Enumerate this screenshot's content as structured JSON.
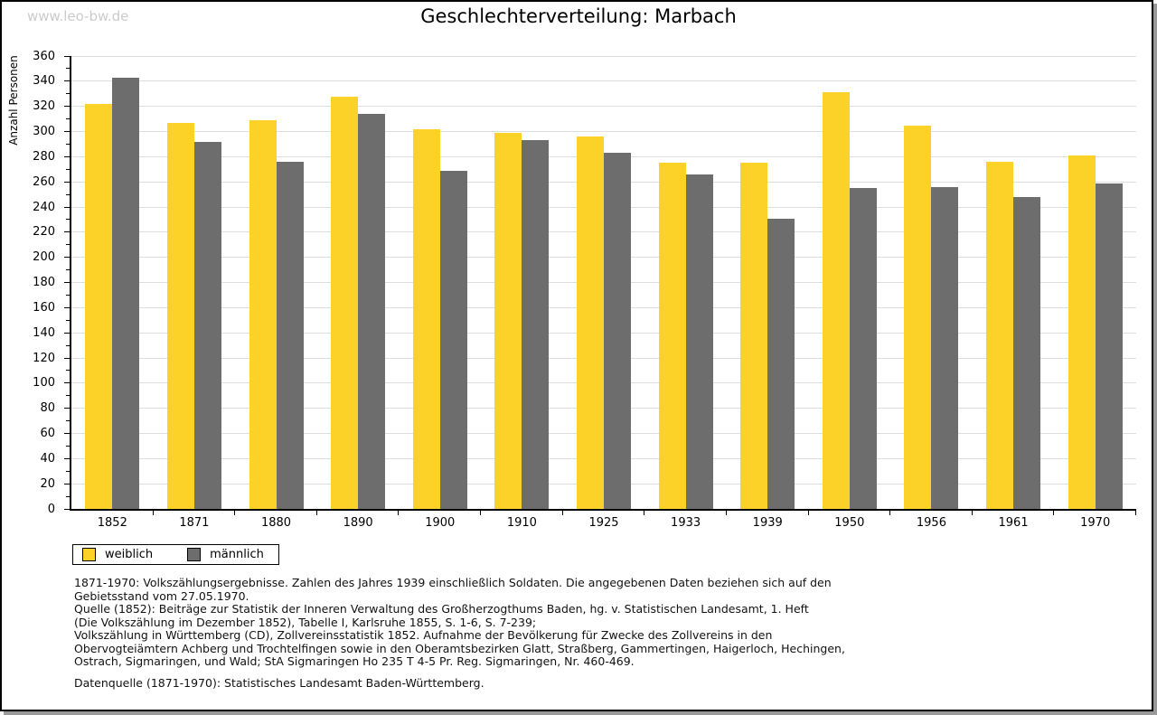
{
  "watermark": "www.leo-bw.de",
  "title": "Geschlechterverteilung: Marbach",
  "chart_data": {
    "type": "bar",
    "title": "Geschlechterverteilung: Marbach",
    "xlabel": "",
    "ylabel": "Anzahl Personen",
    "categories": [
      "1852",
      "1871",
      "1880",
      "1890",
      "1900",
      "1910",
      "1925",
      "1933",
      "1939",
      "1950",
      "1956",
      "1961",
      "1970"
    ],
    "series": [
      {
        "name": "weiblich",
        "color": "#fcd228",
        "values": [
          322,
          307,
          309,
          328,
          302,
          299,
          296,
          275,
          275,
          331,
          305,
          276,
          281
        ]
      },
      {
        "name": "männlich",
        "color": "#6d6d6d",
        "values": [
          343,
          292,
          276,
          314,
          269,
          293,
          283,
          266,
          231,
          255,
          256,
          248,
          259
        ]
      }
    ],
    "ylim": [
      0,
      360
    ],
    "ytick_step": 20,
    "ytick_minor_step": 10,
    "grid": true,
    "legend_position": "bottom-left",
    "grid_color": "#dedede",
    "axis_color": "#000000"
  },
  "footnotes": {
    "lines": [
      "1871-1970: Volkszählungsergebnisse. Zahlen des Jahres 1939 einschließlich Soldaten. Die angegebenen Daten beziehen sich auf den",
      "Gebietsstand vom 27.05.1970.",
      "Quelle (1852): Beiträge zur Statistik der Inneren Verwaltung des Großherzogthums Baden, hg. v. Statistischen Landesamt, 1. Heft",
      "(Die Volkszählung im Dezember 1852), Tabelle I, Karlsruhe 1855, S. 1-6, S. 7-239;",
      "Volkszählung in Württemberg (CD), Zollvereinsstatistik 1852. Aufnahme der Bevölkerung für Zwecke des Zollvereins in den",
      "Obervogteiämtern Achberg und Trochtelfingen sowie in den Oberamtsbezirken Glatt, Straßberg, Gammertingen, Haigerloch, Hechingen,",
      "Ostrach, Sigmaringen, und Wald; StA Sigmaringen Ho 235 T 4-5 Pr. Reg. Sigmaringen, Nr. 460-469."
    ],
    "datasource": "Datenquelle (1871-1970): Statistisches Landesamt Baden-Württemberg."
  }
}
